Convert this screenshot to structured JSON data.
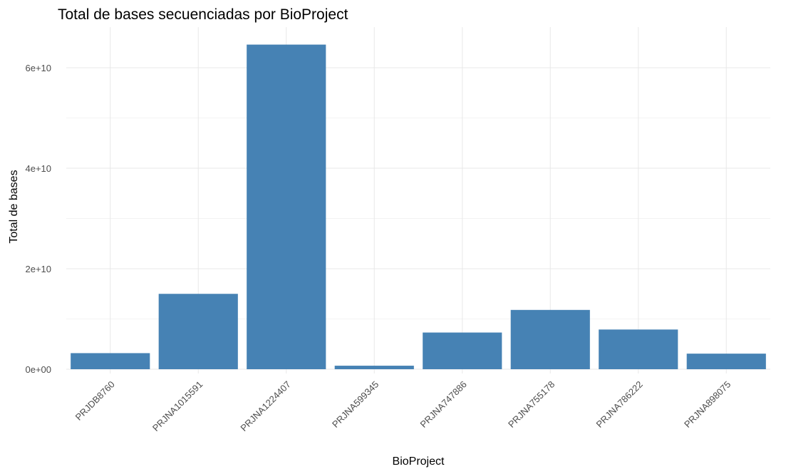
{
  "chart_data": {
    "type": "bar",
    "title": "Total de bases secuenciadas por BioProject",
    "xlabel": "BioProject",
    "ylabel": "Total de bases",
    "categories": [
      "PRJDB8760",
      "PRJNA1015591",
      "PRJNA1224407",
      "PRJNA599345",
      "PRJNA747886",
      "PRJNA755178",
      "PRJNA786222",
      "PRJNA898075"
    ],
    "values": [
      3200000000,
      15000000000,
      64600000000,
      700000000,
      7300000000,
      11800000000,
      7900000000,
      3100000000
    ],
    "ylim": [
      0,
      66000000000
    ],
    "yticks": [
      0,
      20000000000,
      40000000000,
      60000000000
    ],
    "ytick_labels": [
      "0e+00",
      "2e+10",
      "4e+10",
      "6e+10"
    ],
    "bar_color": "#4682B4",
    "grid": true,
    "legend": "none"
  }
}
